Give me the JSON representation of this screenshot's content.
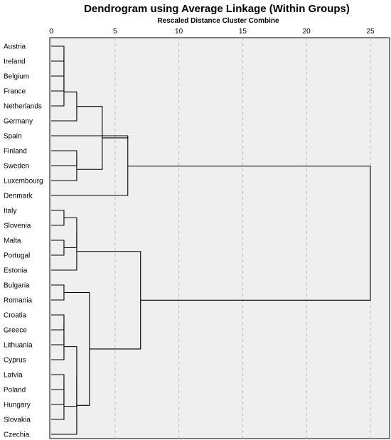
{
  "chart_data": {
    "type": "dendrogram",
    "title": "Dendrogram using Average Linkage (Within Groups)",
    "subtitle": "Rescaled Distance Cluster Combine",
    "xlim": [
      0,
      25
    ],
    "ticks": [
      0,
      5,
      10,
      15,
      20,
      25
    ],
    "grid": true,
    "leaves": [
      "Austria",
      "Ireland",
      "Belgium",
      "France",
      "Netherlands",
      "Germany",
      "Spain",
      "Finland",
      "Sweden",
      "Luxembourg",
      "Denmark",
      "Italy",
      "Slovenia",
      "Malta",
      "Portugal",
      "Estonia",
      "Bulgaria",
      "Romania",
      "Croatia",
      "Greece",
      "Lithuania",
      "Cyprus",
      "Latvia",
      "Poland",
      "Hungary",
      "Slovakia",
      "Czechia"
    ],
    "merges": [
      {
        "a": "Austria",
        "b": "Ireland",
        "distance": 1.0
      },
      {
        "a": "M1",
        "b": "Belgium",
        "distance": 1.0
      },
      {
        "a": "M2",
        "b": "France",
        "distance": 1.0
      },
      {
        "a": "M3",
        "b": "Netherlands",
        "distance": 1.0
      },
      {
        "a": "M4",
        "b": "Germany",
        "distance": 2.0
      },
      {
        "a": "Finland",
        "b": "Sweden",
        "distance": 2.0
      },
      {
        "a": "M6",
        "b": "Luxembourg",
        "distance": 2.0
      },
      {
        "a": "M5",
        "b": "M7",
        "distance": 4.0
      },
      {
        "a": "M8",
        "b": "Spain",
        "distance": 6.0
      },
      {
        "a": "M9",
        "b": "Denmark",
        "distance": 6.0
      },
      {
        "a": "Italy",
        "b": "Slovenia",
        "distance": 1.0
      },
      {
        "a": "Malta",
        "b": "Portugal",
        "distance": 1.0
      },
      {
        "a": "M11",
        "b": "M12",
        "distance": 2.0
      },
      {
        "a": "M13",
        "b": "Estonia",
        "distance": 2.0
      },
      {
        "a": "Bulgaria",
        "b": "Romania",
        "distance": 1.0
      },
      {
        "a": "Croatia",
        "b": "Greece",
        "distance": 1.0
      },
      {
        "a": "M16",
        "b": "Lithuania",
        "distance": 1.0
      },
      {
        "a": "M17",
        "b": "Cyprus",
        "distance": 1.0
      },
      {
        "a": "Latvia",
        "b": "Poland",
        "distance": 1.0
      },
      {
        "a": "M19",
        "b": "Hungary",
        "distance": 1.0
      },
      {
        "a": "M20",
        "b": "Slovakia",
        "distance": 1.0
      },
      {
        "a": "M18",
        "b": "M21",
        "distance": 2.0
      },
      {
        "a": "M22",
        "b": "Czechia",
        "distance": 2.0
      },
      {
        "a": "M15",
        "b": "M23",
        "distance": 3.0
      },
      {
        "a": "M14",
        "b": "M24",
        "distance": 7.0
      },
      {
        "a": "M10",
        "b": "M25",
        "distance": 25.0
      }
    ]
  }
}
